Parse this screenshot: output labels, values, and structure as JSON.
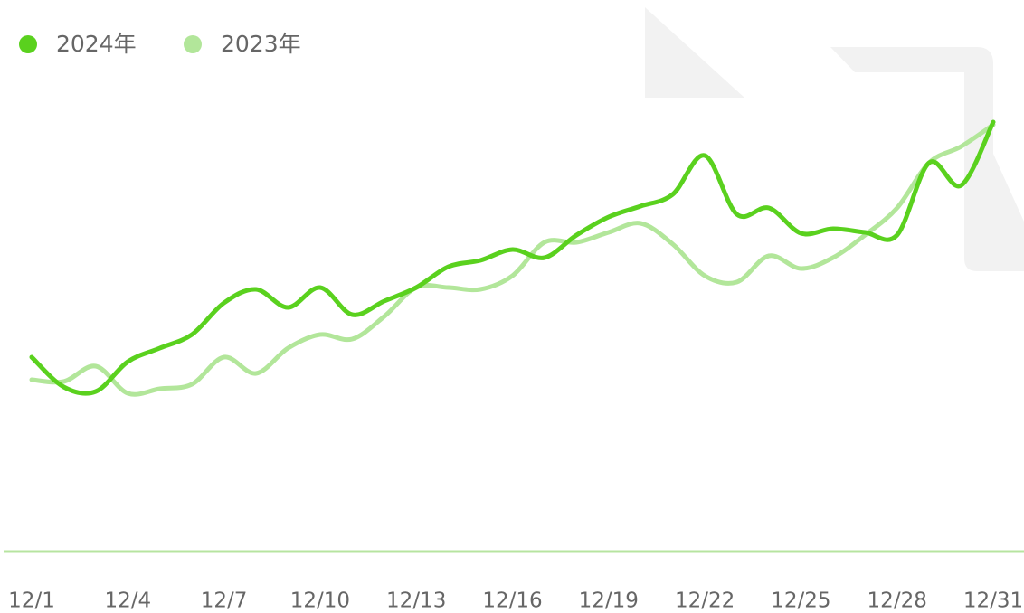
{
  "chart_data": {
    "type": "line",
    "categories": [
      "12/1",
      null,
      null,
      "12/4",
      null,
      null,
      "12/7",
      null,
      null,
      "12/10",
      null,
      null,
      "12/13",
      null,
      null,
      "12/16",
      null,
      null,
      "12/19",
      null,
      null,
      "12/22",
      null,
      null,
      "12/25",
      null,
      null,
      "12/28",
      null,
      null,
      "12/31"
    ],
    "series": [
      {
        "name": "2024年",
        "color": "#5ad11e",
        "values": [
          43,
          36.4,
          35.4,
          42,
          45,
          48,
          55,
          58,
          54,
          58.4,
          52.4,
          55.4,
          58.4,
          63,
          64.4,
          66.8,
          65,
          70,
          74,
          76.4,
          79,
          87.6,
          74.6,
          76,
          70.4,
          71.4,
          70.6,
          70,
          86,
          81,
          95
        ]
      },
      {
        "name": "2023年",
        "color": "#b2e69a",
        "values": [
          38,
          37.6,
          41,
          35,
          36,
          37,
          43,
          39.4,
          45,
          48,
          47,
          52,
          58.4,
          58.4,
          58,
          61,
          68.4,
          68.4,
          70.6,
          72.6,
          68,
          61,
          59.6,
          65.4,
          62.6,
          65,
          70,
          76,
          86,
          89.6,
          94.4
        ]
      }
    ],
    "ylim": [
      0,
      120
    ],
    "legend": "top-left"
  }
}
